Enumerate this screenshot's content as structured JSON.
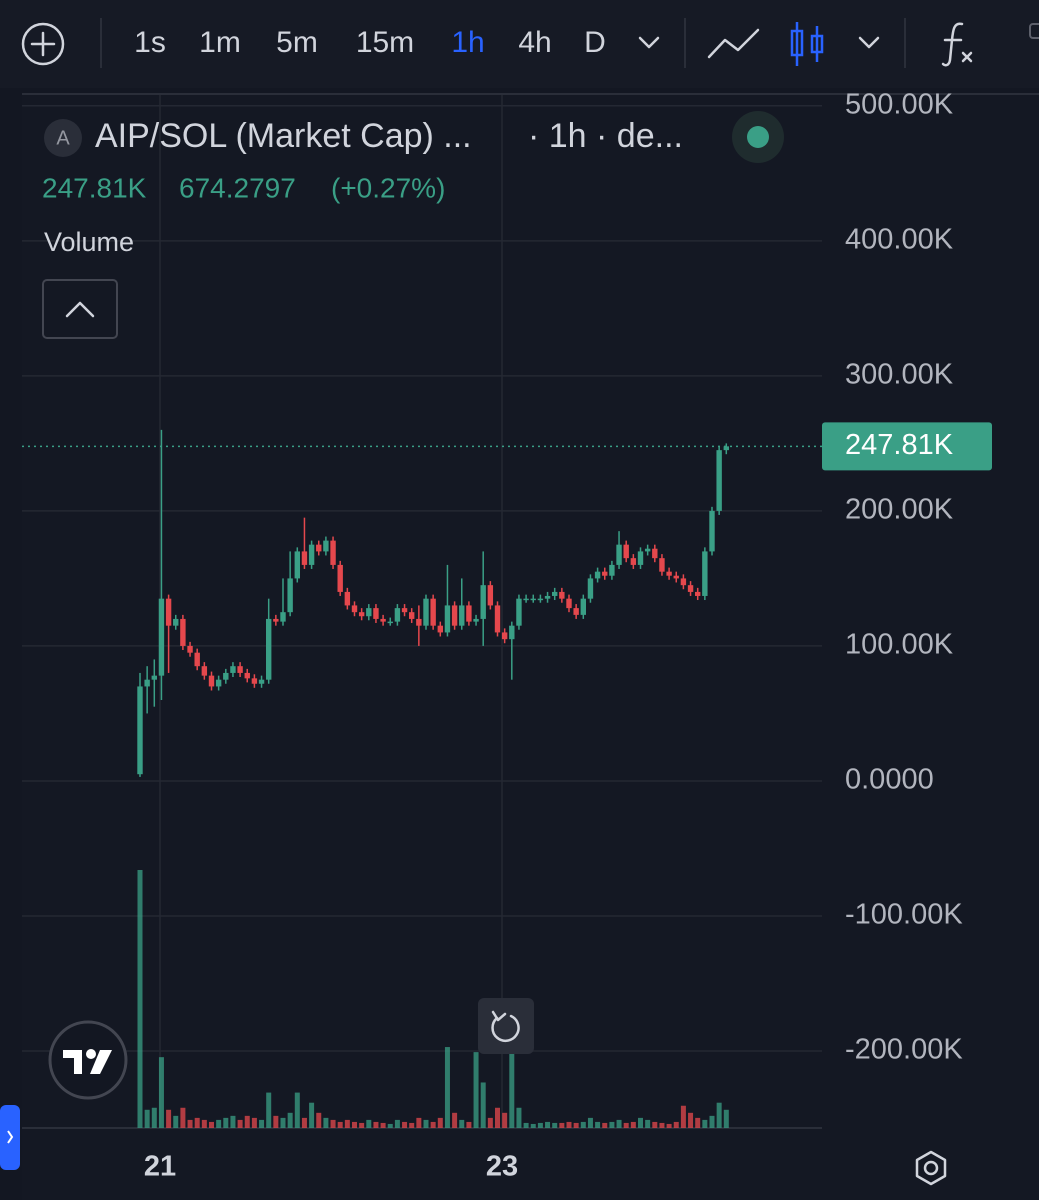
{
  "toolbar": {
    "intervals": [
      "1s",
      "1m",
      "5m",
      "15m",
      "1h",
      "4h",
      "D"
    ],
    "active": "1h"
  },
  "header": {
    "avatar": "A",
    "symbol": "AIP/SOL (Market Cap) ...",
    "meta": "· 1h · de...",
    "last": "247.81K",
    "change": "674.2797",
    "change_pct": "(+0.27%)",
    "indicator": "Volume"
  },
  "chart_data": {
    "type": "candlestick",
    "x_labels": [
      "21",
      "23"
    ],
    "ylim": [
      -257000,
      508000
    ],
    "yticks": [
      {
        "value": 500000,
        "label": "500.00K"
      },
      {
        "value": 400000,
        "label": "400.00K"
      },
      {
        "value": 300000,
        "label": "300.00K"
      },
      {
        "value": 200000,
        "label": "200.00K"
      },
      {
        "value": 100000,
        "label": "100.00K"
      },
      {
        "value": 0,
        "label": "0.0000"
      },
      {
        "value": -100000,
        "label": "-100.00K"
      },
      {
        "value": -200000,
        "label": "-200.00K"
      }
    ],
    "last_price": {
      "value": 247810,
      "label": "247.81K"
    },
    "colors": {
      "up": "#3a9f86",
      "down": "#e5484d"
    },
    "open": [
      5000,
      70000,
      75000,
      78000,
      135000,
      115000,
      120000,
      100000,
      95000,
      85000,
      78000,
      70000,
      75000,
      80000,
      85000,
      80000,
      76000,
      72000,
      75000,
      120000,
      118000,
      125000,
      150000,
      170000,
      160000,
      175000,
      170000,
      178000,
      160000,
      140000,
      130000,
      125000,
      122000,
      128000,
      120000,
      118000,
      118000,
      128000,
      125000,
      120000,
      115000,
      135000,
      115000,
      110000,
      130000,
      115000,
      130000,
      118000,
      120000,
      145000,
      130000,
      110000,
      105000,
      115000,
      135000,
      135000,
      135000,
      135000,
      137000,
      140000,
      135000,
      128000,
      123000,
      135000,
      150000,
      155000,
      152000,
      160000,
      175000,
      165000,
      160000,
      170000,
      172000,
      165000,
      155000,
      152000,
      150000,
      145000,
      140000,
      137000,
      170000,
      200000,
      245000
    ],
    "high": [
      80000,
      85000,
      90000,
      260000,
      138000,
      123000,
      123000,
      103000,
      98000,
      88000,
      81000,
      78000,
      83000,
      88000,
      88000,
      83000,
      79000,
      78000,
      135000,
      123000,
      150000,
      170000,
      173000,
      195000,
      178000,
      178000,
      181000,
      181000,
      163000,
      143000,
      133000,
      128000,
      131000,
      131000,
      123000,
      121000,
      131000,
      131000,
      128000,
      130000,
      138000,
      138000,
      118000,
      160000,
      133000,
      150000,
      133000,
      123000,
      170000,
      148000,
      133000,
      113000,
      118000,
      138000,
      138000,
      138000,
      138000,
      140000,
      143000,
      143000,
      138000,
      131000,
      138000,
      153000,
      158000,
      158000,
      163000,
      185000,
      178000,
      168000,
      173000,
      175000,
      175000,
      168000,
      158000,
      155000,
      153000,
      148000,
      143000,
      173000,
      203000,
      248000,
      250000
    ],
    "low": [
      3000,
      50000,
      55000,
      60000,
      80000,
      112000,
      97000,
      92000,
      82000,
      75000,
      67000,
      67000,
      72000,
      77000,
      77000,
      73000,
      69000,
      69000,
      72000,
      115000,
      115000,
      122000,
      147000,
      157000,
      157000,
      167000,
      167000,
      157000,
      137000,
      127000,
      122000,
      119000,
      119000,
      117000,
      115000,
      115000,
      115000,
      122000,
      117000,
      100000,
      112000,
      112000,
      107000,
      107000,
      112000,
      112000,
      115000,
      115000,
      100000,
      127000,
      107000,
      102000,
      75000,
      112000,
      132000,
      132000,
      132000,
      132000,
      134000,
      132000,
      125000,
      120000,
      120000,
      132000,
      147000,
      149000,
      149000,
      157000,
      162000,
      157000,
      157000,
      167000,
      162000,
      152000,
      149000,
      147000,
      142000,
      137000,
      134000,
      134000,
      167000,
      197000,
      242000
    ],
    "close": [
      70000,
      75000,
      78000,
      135000,
      115000,
      120000,
      100000,
      95000,
      85000,
      78000,
      70000,
      75000,
      80000,
      85000,
      80000,
      76000,
      72000,
      75000,
      120000,
      118000,
      125000,
      150000,
      170000,
      160000,
      175000,
      170000,
      178000,
      160000,
      140000,
      130000,
      125000,
      122000,
      128000,
      120000,
      118000,
      118000,
      128000,
      125000,
      120000,
      115000,
      135000,
      115000,
      110000,
      130000,
      115000,
      130000,
      118000,
      120000,
      145000,
      130000,
      110000,
      105000,
      115000,
      135000,
      135000,
      135000,
      135000,
      137000,
      140000,
      135000,
      128000,
      123000,
      135000,
      150000,
      155000,
      152000,
      160000,
      175000,
      165000,
      160000,
      170000,
      172000,
      165000,
      155000,
      152000,
      150000,
      145000,
      140000,
      137000,
      170000,
      200000,
      245000,
      247810
    ],
    "volume": [
      255,
      18,
      20,
      70,
      18,
      12,
      20,
      8,
      10,
      8,
      6,
      8,
      10,
      12,
      8,
      12,
      10,
      8,
      35,
      12,
      10,
      15,
      35,
      10,
      25,
      15,
      10,
      8,
      6,
      8,
      6,
      5,
      8,
      6,
      5,
      4,
      8,
      6,
      5,
      10,
      8,
      6,
      10,
      80,
      15,
      8,
      6,
      75,
      45,
      10,
      20,
      15,
      75,
      20,
      5,
      4,
      5,
      6,
      5,
      5,
      6,
      5,
      6,
      10,
      6,
      5,
      6,
      8,
      5,
      6,
      10,
      8,
      6,
      5,
      4,
      6,
      22,
      15,
      10,
      8,
      12,
      25,
      18
    ]
  }
}
